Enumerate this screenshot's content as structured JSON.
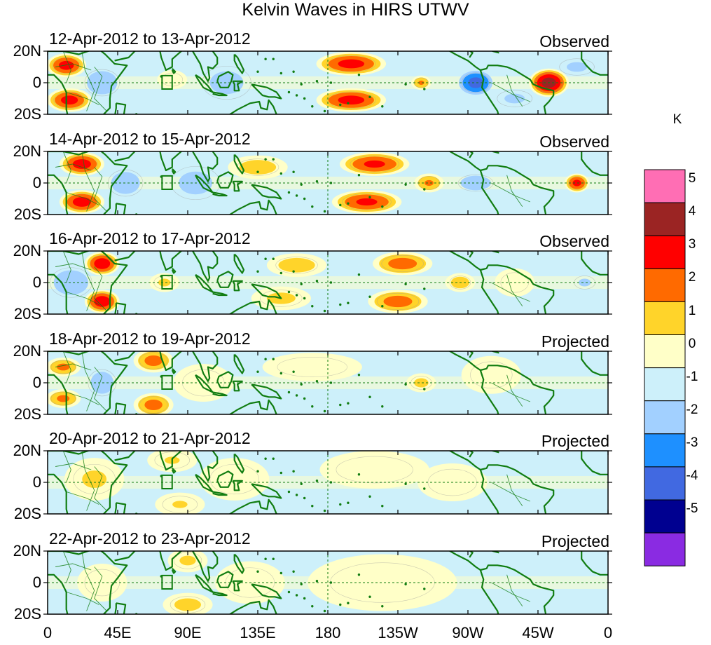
{
  "chart_data": {
    "type": "heatmap",
    "title": "Kelvin Waves in HIRS UTWV",
    "x_tick_labels": [
      "0",
      "45E",
      "90E",
      "135E",
      "180",
      "135W",
      "90W",
      "45W",
      "0"
    ],
    "x_ticks_deg": [
      0,
      45,
      90,
      135,
      180,
      225,
      270,
      315,
      360
    ],
    "y_tick_labels": [
      "20N",
      "0",
      "20S"
    ],
    "y_ticks_deg": [
      20,
      0,
      -20
    ],
    "xlim": [
      0,
      360
    ],
    "ylim": [
      -20,
      20
    ],
    "colorbar": {
      "unit": "K",
      "levels": [
        5,
        4,
        3,
        2,
        1,
        0,
        -1,
        -2,
        -3,
        -4,
        -5
      ],
      "level_labels": [
        "5",
        "4",
        "3",
        "2",
        "1",
        "0",
        "-1",
        "-2",
        "-3",
        "-4",
        "-5"
      ],
      "colors": [
        "#ff6eb4",
        "#9b2423",
        "#ff0000",
        "#ff6a00",
        "#ffd42a",
        "#ffffc8",
        "#cdf0fa",
        "#a2d0ff",
        "#1e90ff",
        "#4169e1",
        "#000090",
        "#8a2be2"
      ]
    },
    "panels": [
      {
        "title": "12-Apr-2012 to 13-Apr-2012",
        "label": "Observed",
        "features": [
          {
            "lon": 12,
            "lat": 11,
            "amp": 3.5,
            "w": 8,
            "h": 5
          },
          {
            "lon": 14,
            "lat": -11,
            "amp": 3.5,
            "w": 9,
            "h": 5
          },
          {
            "lon": 35,
            "lat": 0,
            "amp": -1.6,
            "w": 10,
            "h": 8
          },
          {
            "lon": 80,
            "lat": 2,
            "amp": 1.0,
            "w": 6,
            "h": 4
          },
          {
            "lon": 115,
            "lat": 0,
            "amp": -1.3,
            "w": 14,
            "h": 10
          },
          {
            "lon": 195,
            "lat": 12,
            "amp": 3.5,
            "w": 14,
            "h": 5
          },
          {
            "lon": 195,
            "lat": -11,
            "amp": 3.5,
            "w": 14,
            "h": 5
          },
          {
            "lon": 240,
            "lat": 0,
            "amp": 2.2,
            "w": 4,
            "h": 3
          },
          {
            "lon": 275,
            "lat": 0,
            "amp": -3.5,
            "w": 8,
            "h": 6
          },
          {
            "lon": 300,
            "lat": -10,
            "amp": -1.2,
            "w": 10,
            "h": 5
          },
          {
            "lon": 322,
            "lat": 0,
            "amp": 4.6,
            "w": 8,
            "h": 6
          },
          {
            "lon": 340,
            "lat": 10,
            "amp": -1.2,
            "w": 10,
            "h": 5
          }
        ]
      },
      {
        "title": "14-Apr-2012 to 15-Apr-2012",
        "label": "Observed",
        "features": [
          {
            "lon": 22,
            "lat": 12,
            "amp": 3.6,
            "w": 9,
            "h": 5
          },
          {
            "lon": 22,
            "lat": -12,
            "amp": 3.6,
            "w": 9,
            "h": 5
          },
          {
            "lon": 50,
            "lat": 0,
            "amp": -1.5,
            "w": 10,
            "h": 8
          },
          {
            "lon": 95,
            "lat": 0,
            "amp": -1.3,
            "w": 14,
            "h": 10
          },
          {
            "lon": 135,
            "lat": 10,
            "amp": 1.6,
            "w": 12,
            "h": 5
          },
          {
            "lon": 210,
            "lat": 12,
            "amp": 3.3,
            "w": 14,
            "h": 5
          },
          {
            "lon": 205,
            "lat": -12,
            "amp": 3.3,
            "w": 14,
            "h": 5
          },
          {
            "lon": 245,
            "lat": 0,
            "amp": 2.2,
            "w": 6,
            "h": 4
          },
          {
            "lon": 275,
            "lat": 0,
            "amp": -1.6,
            "w": 10,
            "h": 5
          },
          {
            "lon": 340,
            "lat": 0,
            "amp": 3.4,
            "w": 5,
            "h": 4
          }
        ]
      },
      {
        "title": "16-Apr-2012 to 17-Apr-2012",
        "label": "Observed",
        "features": [
          {
            "lon": 35,
            "lat": 12,
            "amp": 3.8,
            "w": 7,
            "h": 5
          },
          {
            "lon": 35,
            "lat": -12,
            "amp": 3.8,
            "w": 7,
            "h": 5
          },
          {
            "lon": 15,
            "lat": 0,
            "amp": -1.5,
            "w": 12,
            "h": 9
          },
          {
            "lon": 75,
            "lat": 0,
            "amp": 1.2,
            "w": 6,
            "h": 4
          },
          {
            "lon": 160,
            "lat": 11,
            "amp": 1.6,
            "w": 12,
            "h": 5
          },
          {
            "lon": 150,
            "lat": -10,
            "amp": 1.3,
            "w": 12,
            "h": 5
          },
          {
            "lon": 228,
            "lat": 12,
            "amp": 2.6,
            "w": 12,
            "h": 5
          },
          {
            "lon": 225,
            "lat": -12,
            "amp": 2.6,
            "w": 12,
            "h": 5
          },
          {
            "lon": 265,
            "lat": 0,
            "amp": 1.6,
            "w": 6,
            "h": 4
          },
          {
            "lon": 300,
            "lat": 0,
            "amp": 1.0,
            "w": 8,
            "h": 6
          },
          {
            "lon": 345,
            "lat": 0,
            "amp": -1.2,
            "w": 6,
            "h": 4
          }
        ]
      },
      {
        "title": "18-Apr-2012 to 19-Apr-2012",
        "label": "Projected",
        "features": [
          {
            "lon": 10,
            "lat": 10,
            "amp": 2.3,
            "w": 7,
            "h": 4
          },
          {
            "lon": 10,
            "lat": -10,
            "amp": 2.3,
            "w": 7,
            "h": 4
          },
          {
            "lon": 35,
            "lat": 0,
            "amp": -1.5,
            "w": 8,
            "h": 8
          },
          {
            "lon": 68,
            "lat": 14,
            "amp": 2.5,
            "w": 8,
            "h": 5
          },
          {
            "lon": 68,
            "lat": -14,
            "amp": 2.5,
            "w": 8,
            "h": 5
          },
          {
            "lon": 100,
            "lat": 0,
            "amp": 0.9,
            "w": 12,
            "h": 8
          },
          {
            "lon": 170,
            "lat": 10,
            "amp": 0.8,
            "w": 20,
            "h": 6
          },
          {
            "lon": 240,
            "lat": 0,
            "amp": 1.3,
            "w": 6,
            "h": 4
          },
          {
            "lon": 285,
            "lat": 5,
            "amp": 0.6,
            "w": 12,
            "h": 8
          }
        ]
      },
      {
        "title": "20-Apr-2012 to 21-Apr-2012",
        "label": "Projected",
        "features": [
          {
            "lon": 30,
            "lat": 2,
            "amp": 1.2,
            "w": 12,
            "h": 9
          },
          {
            "lon": 80,
            "lat": 14,
            "amp": 1.1,
            "w": 10,
            "h": 5
          },
          {
            "lon": 85,
            "lat": -14,
            "amp": 1.1,
            "w": 10,
            "h": 5
          },
          {
            "lon": 120,
            "lat": 2,
            "amp": 0.6,
            "w": 14,
            "h": 9
          },
          {
            "lon": 210,
            "lat": 8,
            "amp": 0.7,
            "w": 22,
            "h": 8
          },
          {
            "lon": 260,
            "lat": 0,
            "amp": 0.8,
            "w": 14,
            "h": 8
          }
        ]
      },
      {
        "title": "22-Apr-2012 to 23-Apr-2012",
        "label": "Projected",
        "features": [
          {
            "lon": 35,
            "lat": 0,
            "amp": 0.9,
            "w": 10,
            "h": 8
          },
          {
            "lon": 90,
            "lat": -14,
            "amp": 1.4,
            "w": 10,
            "h": 5
          },
          {
            "lon": 90,
            "lat": 14,
            "amp": 1.2,
            "w": 8,
            "h": 5
          },
          {
            "lon": 130,
            "lat": 0,
            "amp": 0.6,
            "w": 14,
            "h": 9
          },
          {
            "lon": 215,
            "lat": 0,
            "amp": 0.6,
            "w": 30,
            "h": 12
          }
        ]
      }
    ]
  }
}
